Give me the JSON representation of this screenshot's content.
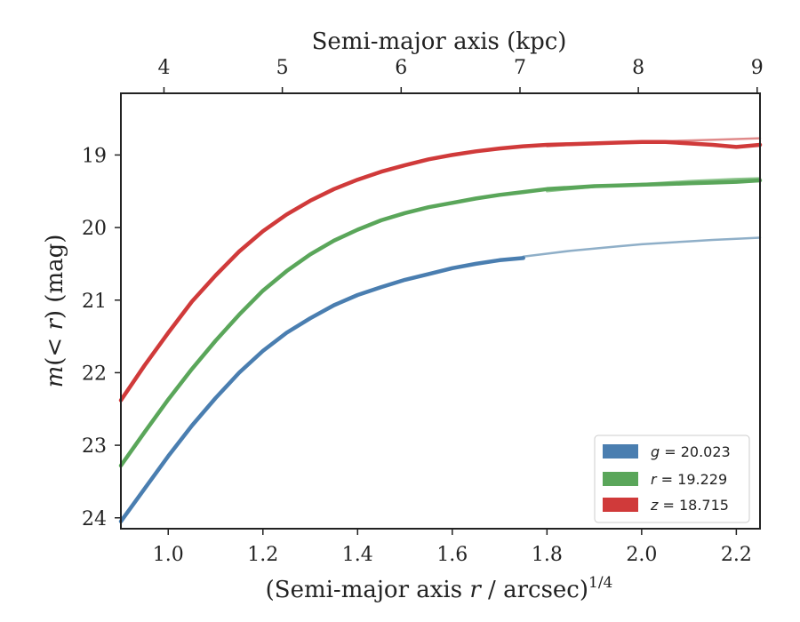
{
  "chart_data": {
    "type": "line",
    "xlabel": "(Semi-major axis r / arcsec)^{1/4}",
    "xlabel_parts": {
      "pre": "(Semi-major axis ",
      "var": "r",
      "post": " / arcsec)",
      "sup": "1/4"
    },
    "top_xlabel": "Semi-major axis (kpc)",
    "ylabel": "m(< r) (mag)",
    "ylabel_parts": {
      "m": "m",
      "open": "(",
      "lt": "< ",
      "r": "r",
      "close": ")",
      "unit": " (mag)"
    },
    "xlim": [
      0.9,
      2.25
    ],
    "ylim": [
      24.15,
      18.15
    ],
    "y_inverted": true,
    "x_ticks": [
      "1.0",
      "1.2",
      "1.4",
      "1.6",
      "1.8",
      "2.0",
      "2.2"
    ],
    "x_tick_values": [
      1.0,
      1.2,
      1.4,
      1.6,
      1.8,
      2.0,
      2.2
    ],
    "y_ticks": [
      "19",
      "20",
      "21",
      "22",
      "23",
      "24"
    ],
    "y_tick_values": [
      19,
      20,
      21,
      22,
      23,
      24
    ],
    "top_x_ticks": [
      "4",
      "5",
      "6",
      "7",
      "8",
      "9"
    ],
    "top_x_tick_positions": [
      0.991,
      1.241,
      1.492,
      1.743,
      1.993,
      2.244
    ],
    "legend_position": "lower right",
    "grid": false,
    "series": [
      {
        "name": "g = 20.023",
        "color": "#4a7eb0",
        "fit_color": "#8fafc8",
        "x": [
          0.9,
          0.95,
          1.0,
          1.05,
          1.1,
          1.15,
          1.2,
          1.25,
          1.3,
          1.35,
          1.4,
          1.45,
          1.5,
          1.55,
          1.6,
          1.65,
          1.7,
          1.75
        ],
        "y": [
          24.05,
          23.6,
          23.15,
          22.73,
          22.35,
          22.0,
          21.7,
          21.45,
          21.25,
          21.07,
          20.93,
          20.82,
          20.72,
          20.64,
          20.56,
          20.5,
          20.45,
          20.42
        ],
        "fit_x": [
          1.75,
          1.8,
          1.85,
          1.9,
          1.95,
          2.0,
          2.05,
          2.1,
          2.15,
          2.2,
          2.25
        ],
        "fit_y": [
          20.4,
          20.36,
          20.32,
          20.29,
          20.26,
          20.23,
          20.21,
          20.19,
          20.17,
          20.155,
          20.14
        ]
      },
      {
        "name": "r = 19.229",
        "color": "#5aa65a",
        "fit_color": "#8cc48c",
        "x": [
          0.9,
          0.95,
          1.0,
          1.05,
          1.1,
          1.15,
          1.2,
          1.25,
          1.3,
          1.35,
          1.4,
          1.45,
          1.5,
          1.55,
          1.6,
          1.65,
          1.7,
          1.75,
          1.8,
          1.85,
          1.9,
          1.95,
          2.0,
          2.05,
          2.1,
          2.15,
          2.2,
          2.25
        ],
        "y": [
          23.28,
          22.82,
          22.37,
          21.95,
          21.56,
          21.2,
          20.87,
          20.6,
          20.37,
          20.18,
          20.03,
          19.9,
          19.8,
          19.72,
          19.66,
          19.6,
          19.55,
          19.51,
          19.47,
          19.45,
          19.43,
          19.42,
          19.41,
          19.4,
          19.39,
          19.38,
          19.37,
          19.35
        ],
        "fit_x": [
          1.8,
          1.9,
          2.0,
          2.1,
          2.2,
          2.25
        ],
        "fit_y": [
          19.5,
          19.44,
          19.4,
          19.36,
          19.33,
          19.32
        ]
      },
      {
        "name": "z = 18.715",
        "color": "#d03a3a",
        "fit_color": "#e08a8a",
        "x": [
          0.9,
          0.95,
          1.0,
          1.05,
          1.1,
          1.15,
          1.2,
          1.25,
          1.3,
          1.35,
          1.4,
          1.45,
          1.5,
          1.55,
          1.6,
          1.65,
          1.7,
          1.75,
          1.8,
          1.85,
          1.9,
          1.95,
          2.0,
          2.05,
          2.1,
          2.15,
          2.2,
          2.25
        ],
        "y": [
          22.38,
          21.9,
          21.45,
          21.02,
          20.66,
          20.33,
          20.05,
          19.82,
          19.63,
          19.47,
          19.34,
          19.23,
          19.14,
          19.06,
          19.0,
          18.95,
          18.91,
          18.88,
          18.86,
          18.85,
          18.84,
          18.83,
          18.82,
          18.82,
          18.84,
          18.86,
          18.89,
          18.86
        ],
        "fit_x": [
          1.8,
          1.9,
          2.0,
          2.1,
          2.2,
          2.25
        ],
        "fit_y": [
          18.88,
          18.84,
          18.82,
          18.8,
          18.78,
          18.77
        ]
      }
    ]
  },
  "legend": {
    "items": [
      {
        "var": "g",
        "value": " = 20.023",
        "color": "#4a7eb0"
      },
      {
        "var": "r",
        "value": " = 19.229",
        "color": "#5aa65a"
      },
      {
        "var": "z",
        "value": " = 18.715",
        "color": "#d03a3a"
      }
    ]
  }
}
